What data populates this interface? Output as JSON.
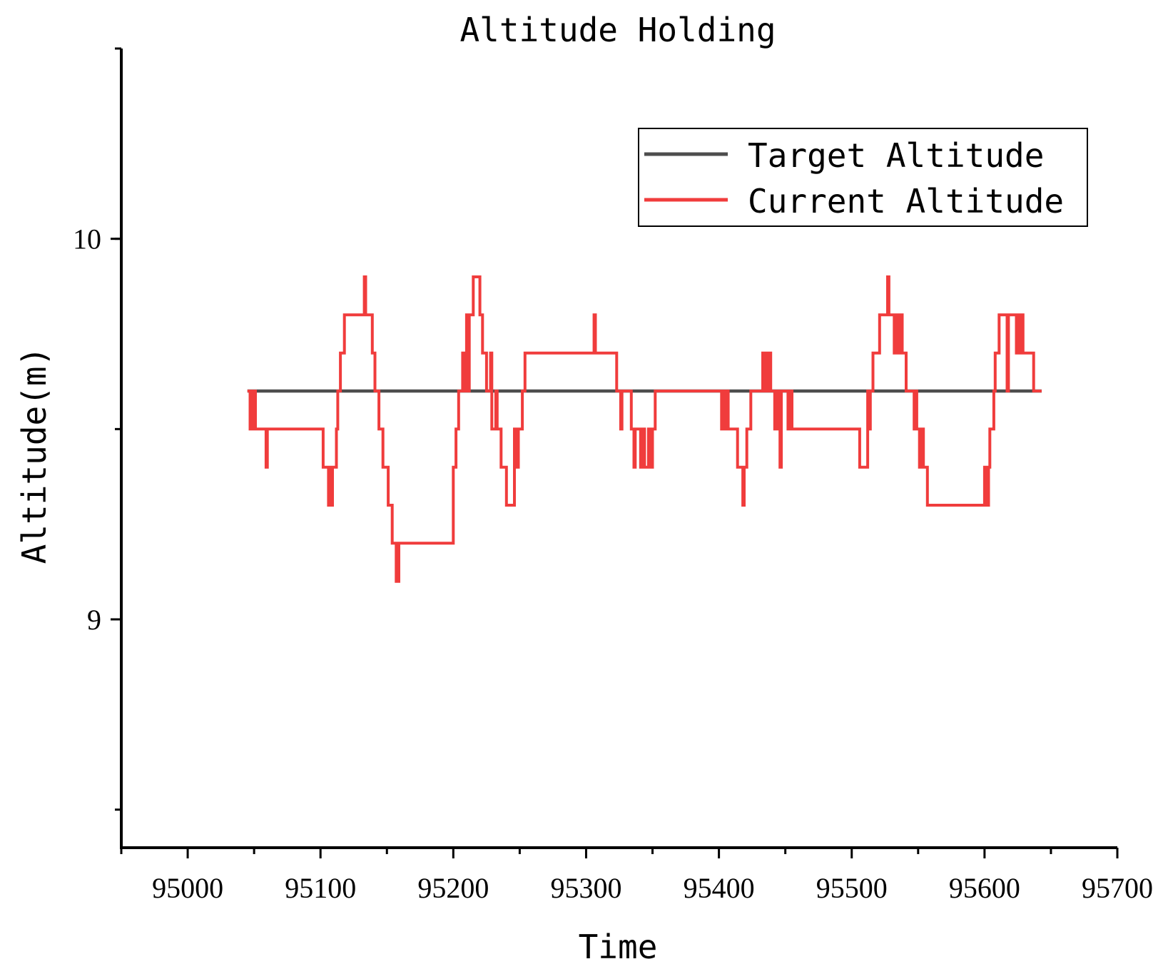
{
  "chart_data": {
    "type": "line",
    "title": "Altitude Holding",
    "xlabel": "Time",
    "ylabel": "Altitude(m)",
    "xlim": [
      94950,
      95700
    ],
    "ylim": [
      8.4,
      10.5
    ],
    "x_ticks": [
      95000,
      95100,
      95200,
      95300,
      95400,
      95500,
      95600,
      95700
    ],
    "y_ticks_labeled": [
      9,
      10
    ],
    "legend_position": "top-right",
    "grid": false,
    "series": [
      {
        "name": "Target Altitude",
        "color": "#4d4d4d",
        "points": [
          [
            95045,
            9.6
          ],
          [
            95643,
            9.6
          ]
        ]
      },
      {
        "name": "Current Altitude",
        "color": "#f03c3c",
        "points": [
          [
            95045,
            9.6
          ],
          [
            95047,
            9.6
          ],
          [
            95047,
            9.5
          ],
          [
            95049,
            9.5
          ],
          [
            95049,
            9.6
          ],
          [
            95051,
            9.6
          ],
          [
            95051,
            9.5
          ],
          [
            95059,
            9.5
          ],
          [
            95059,
            9.4
          ],
          [
            95060,
            9.4
          ],
          [
            95060,
            9.5
          ],
          [
            95102,
            9.5
          ],
          [
            95102,
            9.4
          ],
          [
            95106,
            9.4
          ],
          [
            95106,
            9.3
          ],
          [
            95107,
            9.3
          ],
          [
            95107,
            9.4
          ],
          [
            95108,
            9.4
          ],
          [
            95108,
            9.3
          ],
          [
            95109,
            9.3
          ],
          [
            95109,
            9.4
          ],
          [
            95112,
            9.4
          ],
          [
            95112,
            9.5
          ],
          [
            95113,
            9.5
          ],
          [
            95113,
            9.6
          ],
          [
            95115,
            9.6
          ],
          [
            95115,
            9.7
          ],
          [
            95118,
            9.7
          ],
          [
            95118,
            9.8
          ],
          [
            95133,
            9.8
          ],
          [
            95133,
            9.9
          ],
          [
            95134,
            9.9
          ],
          [
            95134,
            9.8
          ],
          [
            95139,
            9.8
          ],
          [
            95139,
            9.7
          ],
          [
            95141,
            9.7
          ],
          [
            95141,
            9.6
          ],
          [
            95144,
            9.6
          ],
          [
            95144,
            9.5
          ],
          [
            95147,
            9.5
          ],
          [
            95147,
            9.4
          ],
          [
            95151,
            9.4
          ],
          [
            95151,
            9.3
          ],
          [
            95154,
            9.3
          ],
          [
            95154,
            9.2
          ],
          [
            95157,
            9.2
          ],
          [
            95157,
            9.1
          ],
          [
            95159,
            9.1
          ],
          [
            95159,
            9.2
          ],
          [
            95200,
            9.2
          ],
          [
            95200,
            9.4
          ],
          [
            95202,
            9.4
          ],
          [
            95202,
            9.5
          ],
          [
            95204,
            9.5
          ],
          [
            95204,
            9.6
          ],
          [
            95207,
            9.6
          ],
          [
            95207,
            9.7
          ],
          [
            95208,
            9.7
          ],
          [
            95208,
            9.6
          ],
          [
            95209,
            9.6
          ],
          [
            95209,
            9.7
          ],
          [
            95210,
            9.7
          ],
          [
            95210,
            9.8
          ],
          [
            95211,
            9.8
          ],
          [
            95211,
            9.6
          ],
          [
            95212,
            9.6
          ],
          [
            95212,
            9.8
          ],
          [
            95215,
            9.8
          ],
          [
            95215,
            9.9
          ],
          [
            95220,
            9.9
          ],
          [
            95220,
            9.8
          ],
          [
            95222,
            9.8
          ],
          [
            95222,
            9.7
          ],
          [
            95225,
            9.7
          ],
          [
            95225,
            9.6
          ],
          [
            95228,
            9.6
          ],
          [
            95228,
            9.7
          ],
          [
            95229,
            9.7
          ],
          [
            95229,
            9.5
          ],
          [
            95232,
            9.5
          ],
          [
            95232,
            9.6
          ],
          [
            95233,
            9.6
          ],
          [
            95233,
            9.5
          ],
          [
            95236,
            9.5
          ],
          [
            95236,
            9.4
          ],
          [
            95240,
            9.4
          ],
          [
            95240,
            9.3
          ],
          [
            95246,
            9.3
          ],
          [
            95246,
            9.5
          ],
          [
            95247,
            9.5
          ],
          [
            95247,
            9.4
          ],
          [
            95249,
            9.4
          ],
          [
            95249,
            9.5
          ],
          [
            95252,
            9.5
          ],
          [
            95252,
            9.6
          ],
          [
            95254,
            9.6
          ],
          [
            95254,
            9.7
          ],
          [
            95306,
            9.7
          ],
          [
            95306,
            9.8
          ],
          [
            95307,
            9.8
          ],
          [
            95307,
            9.7
          ],
          [
            95323,
            9.7
          ],
          [
            95323,
            9.6
          ],
          [
            95326,
            9.6
          ],
          [
            95326,
            9.5
          ],
          [
            95327,
            9.5
          ],
          [
            95327,
            9.6
          ],
          [
            95334,
            9.6
          ],
          [
            95334,
            9.5
          ],
          [
            95336,
            9.5
          ],
          [
            95336,
            9.4
          ],
          [
            95337,
            9.4
          ],
          [
            95337,
            9.5
          ],
          [
            95341,
            9.5
          ],
          [
            95341,
            9.4
          ],
          [
            95343,
            9.4
          ],
          [
            95343,
            9.5
          ],
          [
            95344,
            9.5
          ],
          [
            95344,
            9.4
          ],
          [
            95347,
            9.4
          ],
          [
            95347,
            9.5
          ],
          [
            95348,
            9.5
          ],
          [
            95348,
            9.4
          ],
          [
            95350,
            9.4
          ],
          [
            95350,
            9.5
          ],
          [
            95352,
            9.5
          ],
          [
            95352,
            9.6
          ],
          [
            95402,
            9.6
          ],
          [
            95402,
            9.5
          ],
          [
            95403,
            9.5
          ],
          [
            95403,
            9.6
          ],
          [
            95405,
            9.6
          ],
          [
            95405,
            9.5
          ],
          [
            95406,
            9.5
          ],
          [
            95406,
            9.6
          ],
          [
            95407,
            9.6
          ],
          [
            95407,
            9.5
          ],
          [
            95414,
            9.5
          ],
          [
            95414,
            9.4
          ],
          [
            95418,
            9.4
          ],
          [
            95418,
            9.3
          ],
          [
            95419,
            9.3
          ],
          [
            95419,
            9.4
          ],
          [
            95421,
            9.4
          ],
          [
            95421,
            9.5
          ],
          [
            95424,
            9.5
          ],
          [
            95424,
            9.6
          ],
          [
            95433,
            9.6
          ],
          [
            95433,
            9.7
          ],
          [
            95434,
            9.7
          ],
          [
            95434,
            9.6
          ],
          [
            95436,
            9.6
          ],
          [
            95436,
            9.7
          ],
          [
            95437,
            9.7
          ],
          [
            95437,
            9.6
          ],
          [
            95438,
            9.6
          ],
          [
            95438,
            9.7
          ],
          [
            95439,
            9.7
          ],
          [
            95439,
            9.6
          ],
          [
            95442,
            9.6
          ],
          [
            95442,
            9.5
          ],
          [
            95443,
            9.5
          ],
          [
            95443,
            9.6
          ],
          [
            95445,
            9.6
          ],
          [
            95445,
            9.5
          ],
          [
            95446,
            9.5
          ],
          [
            95446,
            9.4
          ],
          [
            95447,
            9.4
          ],
          [
            95447,
            9.6
          ],
          [
            95452,
            9.6
          ],
          [
            95452,
            9.5
          ],
          [
            95453,
            9.5
          ],
          [
            95453,
            9.6
          ],
          [
            95455,
            9.6
          ],
          [
            95455,
            9.5
          ],
          [
            95506,
            9.5
          ],
          [
            95506,
            9.4
          ],
          [
            95512,
            9.4
          ],
          [
            95512,
            9.6
          ],
          [
            95513,
            9.6
          ],
          [
            95513,
            9.5
          ],
          [
            95514,
            9.5
          ],
          [
            95514,
            9.6
          ],
          [
            95516,
            9.6
          ],
          [
            95516,
            9.7
          ],
          [
            95521,
            9.7
          ],
          [
            95521,
            9.8
          ],
          [
            95527,
            9.8
          ],
          [
            95527,
            9.9
          ],
          [
            95528,
            9.9
          ],
          [
            95528,
            9.8
          ],
          [
            95532,
            9.8
          ],
          [
            95532,
            9.7
          ],
          [
            95534,
            9.7
          ],
          [
            95534,
            9.8
          ],
          [
            95535,
            9.8
          ],
          [
            95535,
            9.7
          ],
          [
            95537,
            9.7
          ],
          [
            95537,
            9.8
          ],
          [
            95538,
            9.8
          ],
          [
            95538,
            9.7
          ],
          [
            95541,
            9.7
          ],
          [
            95541,
            9.6
          ],
          [
            95547,
            9.6
          ],
          [
            95547,
            9.5
          ],
          [
            95548,
            9.5
          ],
          [
            95548,
            9.6
          ],
          [
            95549,
            9.6
          ],
          [
            95549,
            9.5
          ],
          [
            95551,
            9.5
          ],
          [
            95551,
            9.4
          ],
          [
            95552,
            9.4
          ],
          [
            95552,
            9.5
          ],
          [
            95554,
            9.5
          ],
          [
            95554,
            9.4
          ],
          [
            95557,
            9.4
          ],
          [
            95557,
            9.3
          ],
          [
            95600,
            9.3
          ],
          [
            95600,
            9.4
          ],
          [
            95601,
            9.4
          ],
          [
            95601,
            9.3
          ],
          [
            95603,
            9.3
          ],
          [
            95603,
            9.4
          ],
          [
            95604,
            9.4
          ],
          [
            95604,
            9.5
          ],
          [
            95607,
            9.5
          ],
          [
            95607,
            9.6
          ],
          [
            95608,
            9.6
          ],
          [
            95608,
            9.7
          ],
          [
            95611,
            9.7
          ],
          [
            95611,
            9.8
          ],
          [
            95617,
            9.8
          ],
          [
            95617,
            9.6
          ],
          [
            95618,
            9.6
          ],
          [
            95618,
            9.8
          ],
          [
            95624,
            9.8
          ],
          [
            95624,
            9.7
          ],
          [
            95625,
            9.7
          ],
          [
            95625,
            9.8
          ],
          [
            95627,
            9.8
          ],
          [
            95627,
            9.7
          ],
          [
            95628,
            9.7
          ],
          [
            95628,
            9.8
          ],
          [
            95629,
            9.8
          ],
          [
            95629,
            9.7
          ],
          [
            95637,
            9.7
          ],
          [
            95637,
            9.6
          ],
          [
            95643,
            9.6
          ]
        ]
      }
    ]
  }
}
